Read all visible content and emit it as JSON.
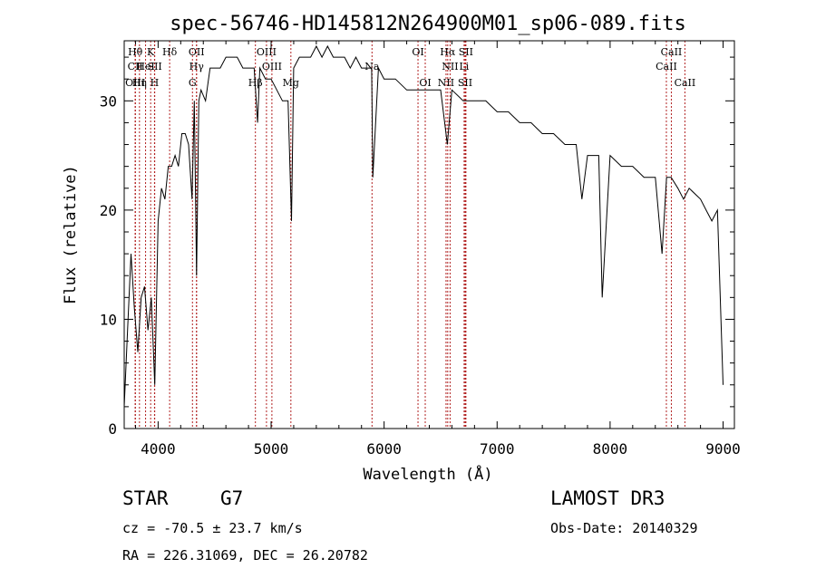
{
  "chart_data": {
    "type": "line",
    "title": "spec-56746-HD145812N264900M01_sp06-089.fits",
    "xlabel": "Wavelength (Å)",
    "ylabel": "Flux (relative)",
    "xlim": [
      3700,
      9100
    ],
    "ylim": [
      0,
      35.5
    ],
    "x_ticks": [
      4000,
      5000,
      6000,
      7000,
      8000,
      9000
    ],
    "y_ticks": [
      0,
      10,
      20,
      30
    ],
    "series": [
      {
        "name": "spectrum",
        "x": [
          3700,
          3730,
          3760,
          3790,
          3820,
          3850,
          3880,
          3910,
          3940,
          3970,
          4000,
          4030,
          4060,
          4090,
          4120,
          4150,
          4180,
          4210,
          4240,
          4270,
          4300,
          4320,
          4340,
          4360,
          4380,
          4420,
          4460,
          4500,
          4550,
          4600,
          4650,
          4700,
          4750,
          4800,
          4850,
          4880,
          4900,
          4950,
          5000,
          5050,
          5100,
          5150,
          5180,
          5200,
          5250,
          5300,
          5350,
          5400,
          5450,
          5500,
          5550,
          5600,
          5650,
          5700,
          5750,
          5800,
          5850,
          5890,
          5900,
          5950,
          6000,
          6100,
          6200,
          6300,
          6400,
          6500,
          6560,
          6600,
          6700,
          6800,
          6900,
          7000,
          7100,
          7200,
          7300,
          7400,
          7500,
          7600,
          7700,
          7750,
          7800,
          7900,
          7930,
          8000,
          8100,
          8200,
          8300,
          8400,
          8460,
          8500,
          8540,
          8600,
          8650,
          8700,
          8800,
          8850,
          8900,
          8950,
          9000
        ],
        "y": [
          2,
          9,
          16,
          11,
          7,
          12,
          13,
          9,
          12,
          4,
          19,
          22,
          21,
          24,
          24,
          25,
          24,
          27,
          27,
          26,
          21,
          30,
          14,
          30,
          31,
          30,
          33,
          33,
          33,
          34,
          34,
          34,
          33,
          33,
          33,
          28,
          33,
          32,
          32,
          31,
          30,
          30,
          19,
          33,
          34,
          34,
          34,
          35,
          34,
          35,
          34,
          34,
          34,
          33,
          34,
          33,
          33,
          33,
          23,
          33,
          32,
          32,
          31,
          31,
          31,
          31,
          26,
          31,
          30,
          30,
          30,
          29,
          29,
          28,
          28,
          27,
          27,
          26,
          26,
          21,
          25,
          25,
          12,
          25,
          24,
          24,
          23,
          23,
          16,
          23,
          23,
          22,
          21,
          22,
          21,
          20,
          19,
          20,
          4
        ]
      }
    ],
    "lines": [
      {
        "name": "Hθ",
        "wl": 3798,
        "row": 1
      },
      {
        "name": "CII",
        "wl": 3798,
        "row": 2
      },
      {
        "name": "OIII",
        "wl": 3798,
        "row": 3
      },
      {
        "name": "K",
        "wl": 3934,
        "row": 1
      },
      {
        "name": "HeI",
        "wl": 3889,
        "row": 2
      },
      {
        "name": "Hη",
        "wl": 3835,
        "row": 3
      },
      {
        "name": "SII",
        "wl": 3970,
        "row": 2
      },
      {
        "name": "H",
        "wl": 3968,
        "row": 3
      },
      {
        "name": "Hδ",
        "wl": 4102,
        "row": 1
      },
      {
        "name": "OII",
        "wl": 4340,
        "row": 1
      },
      {
        "name": "Hγ",
        "wl": 4340,
        "row": 2
      },
      {
        "name": "G",
        "wl": 4304,
        "row": 3
      },
      {
        "name": "OIII",
        "wl": 4959,
        "row": 1
      },
      {
        "name": "OIII",
        "wl": 5007,
        "row": 2
      },
      {
        "name": "Hβ",
        "wl": 4861,
        "row": 3
      },
      {
        "name": "Mg",
        "wl": 5175,
        "row": 3
      },
      {
        "name": "Na",
        "wl": 5893,
        "row": 2
      },
      {
        "name": "OI",
        "wl": 6300,
        "row": 1
      },
      {
        "name": "OI",
        "wl": 6364,
        "row": 3
      },
      {
        "name": "Hα",
        "wl": 6563,
        "row": 1
      },
      {
        "name": "SII",
        "wl": 6724,
        "row": 1
      },
      {
        "name": "NII",
        "wl": 6584,
        "row": 2
      },
      {
        "name": "Li",
        "wl": 6708,
        "row": 2
      },
      {
        "name": "NII",
        "wl": 6548,
        "row": 3
      },
      {
        "name": "SII",
        "wl": 6717,
        "row": 3
      },
      {
        "name": "CaII",
        "wl": 8542,
        "row": 1
      },
      {
        "name": "CaII",
        "wl": 8498,
        "row": 2
      },
      {
        "name": "CaII",
        "wl": 8662,
        "row": 3
      }
    ]
  },
  "info": {
    "object_class": "STAR",
    "subclass": "G7",
    "survey": "LAMOST DR3",
    "cz": "cz = -70.5 ± 23.7 km/s",
    "obs_date": "Obs-Date: 20140329",
    "coords": "RA = 226.31069, DEC =  26.20782"
  }
}
